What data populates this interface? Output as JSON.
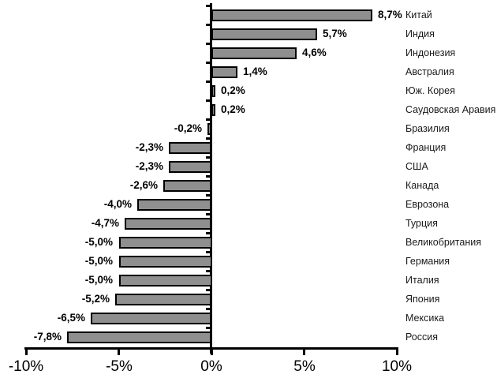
{
  "chart_data": {
    "type": "bar",
    "orientation": "horizontal",
    "title": "",
    "xlabel": "",
    "ylabel": "",
    "xlim": [
      -10,
      10
    ],
    "grid": false,
    "legend": false,
    "bar_color": "#8f8f8f",
    "bar_border_color": "#000000",
    "axis_color": "#000000",
    "x_ticks": [
      {
        "value": -10,
        "label": "-10%"
      },
      {
        "value": -5,
        "label": "-5%"
      },
      {
        "value": 0,
        "label": "0%"
      },
      {
        "value": 5,
        "label": "5%"
      },
      {
        "value": 10,
        "label": "10%"
      }
    ],
    "categories": [
      "Китай",
      "Индия",
      "Индонезия",
      "Австралия",
      "Юж. Корея",
      "Саудовская Аравия",
      "Бразилия",
      "Франция",
      "США",
      "Канада",
      "Еврозона",
      "Турция",
      "Великобритания",
      "Германия",
      "Италия",
      "Япония",
      "Мексика",
      "Россия"
    ],
    "values": [
      8.7,
      5.7,
      4.6,
      1.4,
      0.2,
      0.2,
      -0.2,
      -2.3,
      -2.3,
      -2.6,
      -4.0,
      -4.7,
      -5.0,
      -5.0,
      -5.0,
      -5.2,
      -6.5,
      -7.8
    ],
    "value_labels": [
      "8,7%",
      "5,7%",
      "4,6%",
      "1,4%",
      "0,2%",
      "0,2%",
      "-0,2%",
      "-2,3%",
      "-2,3%",
      "-2,6%",
      "-4,0%",
      "-4,7%",
      "-5,0%",
      "-5,0%",
      "-5,0%",
      "-5,2%",
      "-6,5%",
      "-7,8%"
    ]
  }
}
